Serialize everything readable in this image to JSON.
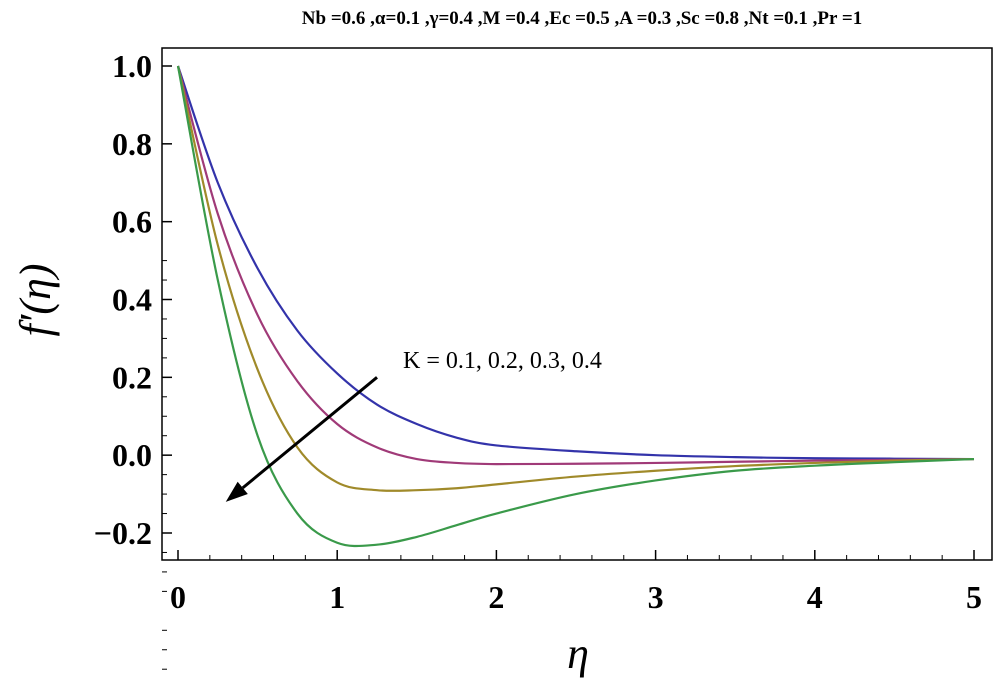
{
  "chart_data": {
    "type": "line",
    "title": "Nb =0.6 ,α=0.1 ,γ=0.4 ,M =0.4 ,Ec =0.5 ,A =0.3 ,Sc =0.8 ,Nt =0.1 ,Pr =1",
    "xlabel": "η",
    "ylabel": "f′(η)",
    "xlim": [
      0,
      5
    ],
    "ylim": [
      -0.27,
      1.05
    ],
    "xticks": [
      "0",
      "1",
      "2",
      "3",
      "4",
      "5"
    ],
    "yticks": [
      "1.0",
      "0.8",
      "0.6",
      "0.4",
      "0.2",
      "0.0",
      "−0.2"
    ],
    "grid": false,
    "annotation": {
      "text": "K = 0.1, 0.2, 0.3, 0.4",
      "arrow_from": [
        1.25,
        0.2
      ],
      "arrow_to": [
        0.3,
        -0.12
      ]
    },
    "x": [
      0,
      0.25,
      0.5,
      0.75,
      1.0,
      1.25,
      1.5,
      1.75,
      2.0,
      2.5,
      3.0,
      3.5,
      4.0,
      4.5,
      5.0
    ],
    "series": [
      {
        "color": "#3333aa",
        "values": [
          1.0,
          0.7,
          0.48,
          0.32,
          0.21,
          0.13,
          0.08,
          0.045,
          0.025,
          0.01,
          0.0,
          -0.005,
          -0.008,
          -0.009,
          -0.01
        ]
      },
      {
        "color": "#a03a78",
        "values": [
          1.0,
          0.62,
          0.36,
          0.19,
          0.08,
          0.02,
          -0.01,
          -0.02,
          -0.023,
          -0.022,
          -0.02,
          -0.017,
          -0.014,
          -0.012,
          -0.01
        ]
      },
      {
        "color": "#a08a2a",
        "values": [
          1.0,
          0.54,
          0.22,
          0.02,
          -0.07,
          -0.09,
          -0.09,
          -0.085,
          -0.075,
          -0.055,
          -0.04,
          -0.028,
          -0.02,
          -0.014,
          -0.01
        ]
      },
      {
        "color": "#3a9a4a",
        "values": [
          1.0,
          0.45,
          0.05,
          -0.15,
          -0.225,
          -0.23,
          -0.21,
          -0.18,
          -0.15,
          -0.1,
          -0.065,
          -0.04,
          -0.027,
          -0.018,
          -0.01
        ]
      }
    ]
  }
}
